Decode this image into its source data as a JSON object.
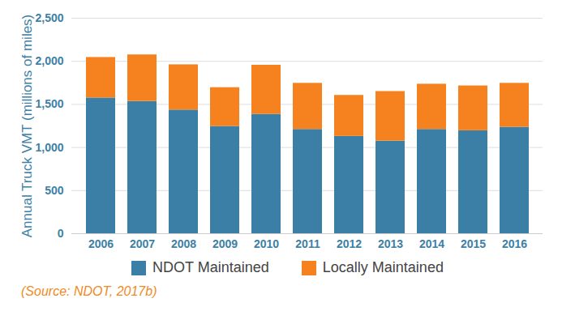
{
  "chart_data": {
    "type": "bar",
    "stacked": true,
    "grid": true,
    "y_label": "Annual Truck VMT (millions of miles)",
    "caption": "(Source: NDOT, 2017b)",
    "categories": [
      "2006",
      "2007",
      "2008",
      "2009",
      "2010",
      "2011",
      "2012",
      "2013",
      "2014",
      "2015",
      "2016"
    ],
    "series": [
      {
        "name": "NDOT Maintained",
        "color": "#3b7fa6",
        "values": [
          1575,
          1535,
          1435,
          1245,
          1385,
          1210,
          1130,
          1075,
          1210,
          1195,
          1235
        ]
      },
      {
        "name": "Locally Maintained",
        "color": "#f5821f",
        "values": [
          470,
          540,
          525,
          450,
          570,
          535,
          475,
          575,
          525,
          520,
          510
        ]
      }
    ],
    "ylim": [
      0,
      2500
    ],
    "yticks": [
      0,
      500,
      1000,
      1500,
      2000,
      2500
    ],
    "legend": "bottom"
  }
}
